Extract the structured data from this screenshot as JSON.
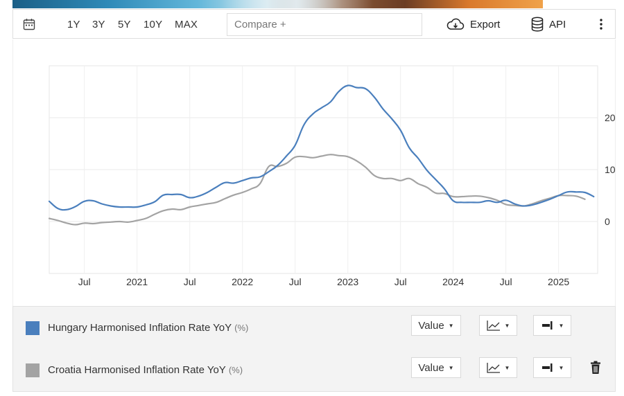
{
  "toolbar": {
    "ranges": [
      "1Y",
      "3Y",
      "5Y",
      "10Y",
      "MAX"
    ],
    "compare_placeholder": "Compare +",
    "export_label": "Export",
    "api_label": "API",
    "icons": [
      "calendar-icon",
      "cloud-download-icon",
      "database-icon",
      "more-vertical-icon"
    ]
  },
  "chart_data": {
    "type": "line",
    "x_tick_labels": [
      "Jul",
      "2021",
      "Jul",
      "2022",
      "Jul",
      "2023",
      "Jul",
      "2024",
      "Jul",
      "2025"
    ],
    "y_tick_labels": [
      "0",
      "10",
      "20"
    ],
    "ylim": [
      -10,
      30
    ],
    "grid": true,
    "y_axis_side": "right",
    "series": [
      {
        "name": "Hungary Harmonised Inflation Rate YoY",
        "color": "#4a7fbd",
        "points": [
          [
            "2020-03",
            3.9
          ],
          [
            "2020-04",
            2.5
          ],
          [
            "2020-05",
            2.3
          ],
          [
            "2020-06",
            2.9
          ],
          [
            "2020-07",
            3.9
          ],
          [
            "2020-08",
            4.0
          ],
          [
            "2020-09",
            3.4
          ],
          [
            "2020-10",
            3.0
          ],
          [
            "2020-11",
            2.8
          ],
          [
            "2020-12",
            2.8
          ],
          [
            "2021-01",
            2.8
          ],
          [
            "2021-02",
            3.2
          ],
          [
            "2021-03",
            3.8
          ],
          [
            "2021-04",
            5.1
          ],
          [
            "2021-05",
            5.2
          ],
          [
            "2021-06",
            5.2
          ],
          [
            "2021-07",
            4.6
          ],
          [
            "2021-08",
            4.9
          ],
          [
            "2021-09",
            5.6
          ],
          [
            "2021-10",
            6.6
          ],
          [
            "2021-11",
            7.5
          ],
          [
            "2021-12",
            7.4
          ],
          [
            "2022-01",
            7.9
          ],
          [
            "2022-02",
            8.4
          ],
          [
            "2022-03",
            8.6
          ],
          [
            "2022-04",
            9.6
          ],
          [
            "2022-05",
            10.8
          ],
          [
            "2022-06",
            12.6
          ],
          [
            "2022-07",
            14.7
          ],
          [
            "2022-08",
            18.6
          ],
          [
            "2022-09",
            20.7
          ],
          [
            "2022-10",
            21.9
          ],
          [
            "2022-11",
            23.0
          ],
          [
            "2022-12",
            25.1
          ],
          [
            "2023-01",
            26.2
          ],
          [
            "2023-02",
            25.8
          ],
          [
            "2023-03",
            25.6
          ],
          [
            "2023-04",
            24.0
          ],
          [
            "2023-05",
            21.7
          ],
          [
            "2023-06",
            19.8
          ],
          [
            "2023-07",
            17.6
          ],
          [
            "2023-08",
            14.2
          ],
          [
            "2023-09",
            12.2
          ],
          [
            "2023-10",
            9.9
          ],
          [
            "2023-11",
            8.1
          ],
          [
            "2023-12",
            6.3
          ],
          [
            "2024-01",
            4.0
          ],
          [
            "2024-02",
            3.7
          ],
          [
            "2024-03",
            3.7
          ],
          [
            "2024-04",
            3.7
          ],
          [
            "2024-05",
            4.0
          ],
          [
            "2024-06",
            3.7
          ],
          [
            "2024-07",
            4.1
          ],
          [
            "2024-08",
            3.4
          ],
          [
            "2024-09",
            3.0
          ],
          [
            "2024-10",
            3.2
          ],
          [
            "2024-11",
            3.7
          ],
          [
            "2024-12",
            4.3
          ],
          [
            "2025-01",
            5.0
          ],
          [
            "2025-02",
            5.7
          ],
          [
            "2025-03",
            5.7
          ],
          [
            "2025-04",
            5.6
          ],
          [
            "2025-05",
            4.8
          ]
        ]
      },
      {
        "name": "Croatia Harmonised Inflation Rate YoY",
        "color": "#a3a3a3",
        "points": [
          [
            "2020-03",
            0.6
          ],
          [
            "2020-04",
            0.2
          ],
          [
            "2020-05",
            -0.3
          ],
          [
            "2020-06",
            -0.6
          ],
          [
            "2020-07",
            -0.3
          ],
          [
            "2020-08",
            -0.4
          ],
          [
            "2020-09",
            -0.2
          ],
          [
            "2020-10",
            -0.1
          ],
          [
            "2020-11",
            0.0
          ],
          [
            "2020-12",
            -0.1
          ],
          [
            "2021-01",
            0.2
          ],
          [
            "2021-02",
            0.6
          ],
          [
            "2021-03",
            1.4
          ],
          [
            "2021-04",
            2.1
          ],
          [
            "2021-05",
            2.4
          ],
          [
            "2021-06",
            2.3
          ],
          [
            "2021-07",
            2.8
          ],
          [
            "2021-08",
            3.1
          ],
          [
            "2021-09",
            3.4
          ],
          [
            "2021-10",
            3.7
          ],
          [
            "2021-11",
            4.4
          ],
          [
            "2021-12",
            5.1
          ],
          [
            "2022-01",
            5.6
          ],
          [
            "2022-02",
            6.3
          ],
          [
            "2022-03",
            7.3
          ],
          [
            "2022-04",
            10.6
          ],
          [
            "2022-05",
            10.6
          ],
          [
            "2022-06",
            11.2
          ],
          [
            "2022-07",
            12.4
          ],
          [
            "2022-08",
            12.5
          ],
          [
            "2022-09",
            12.3
          ],
          [
            "2022-10",
            12.6
          ],
          [
            "2022-11",
            12.9
          ],
          [
            "2022-12",
            12.7
          ],
          [
            "2023-01",
            12.5
          ],
          [
            "2023-02",
            11.7
          ],
          [
            "2023-03",
            10.5
          ],
          [
            "2023-04",
            8.9
          ],
          [
            "2023-05",
            8.3
          ],
          [
            "2023-06",
            8.3
          ],
          [
            "2023-07",
            7.9
          ],
          [
            "2023-08",
            8.3
          ],
          [
            "2023-09",
            7.3
          ],
          [
            "2023-10",
            6.6
          ],
          [
            "2023-11",
            5.5
          ],
          [
            "2023-12",
            5.4
          ],
          [
            "2024-01",
            4.8
          ],
          [
            "2024-02",
            4.8
          ],
          [
            "2024-03",
            4.9
          ],
          [
            "2024-04",
            4.9
          ],
          [
            "2024-05",
            4.6
          ],
          [
            "2024-06",
            4.1
          ],
          [
            "2024-07",
            3.3
          ],
          [
            "2024-08",
            3.1
          ],
          [
            "2024-09",
            3.0
          ],
          [
            "2024-10",
            3.4
          ],
          [
            "2024-11",
            4.0
          ],
          [
            "2024-12",
            4.5
          ],
          [
            "2025-01",
            5.0
          ],
          [
            "2025-02",
            5.0
          ],
          [
            "2025-03",
            4.9
          ],
          [
            "2025-04",
            4.3
          ]
        ]
      }
    ]
  },
  "legend": [
    {
      "name": "Hungary Harmonised Inflation Rate YoY",
      "unit": "(%)",
      "color": "#4a7fbd",
      "value_label": "Value",
      "controls": [
        "line-chart-icon",
        "bar-position-icon"
      ]
    },
    {
      "name": "Croatia Harmonised Inflation Rate YoY",
      "unit": "(%)",
      "color": "#a3a3a3",
      "value_label": "Value",
      "controls": [
        "line-chart-icon",
        "bar-position-icon"
      ],
      "delete_icon": "trash-icon"
    }
  ]
}
